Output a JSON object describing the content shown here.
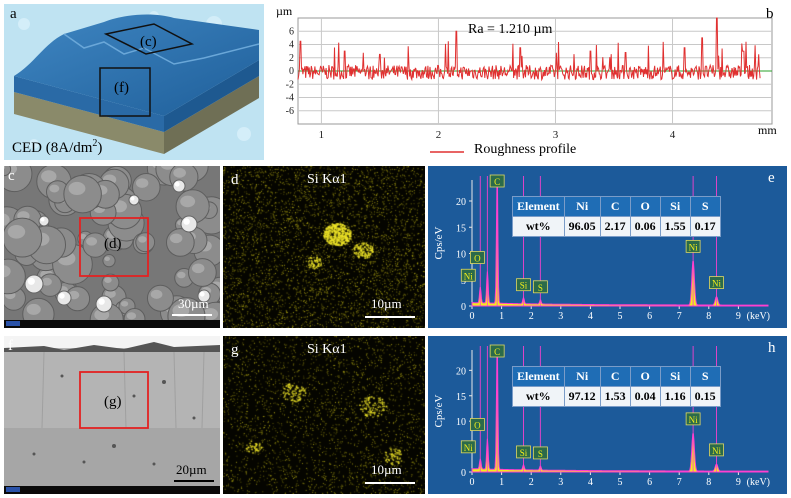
{
  "panel_a": {
    "label": "a",
    "region_c": "(c)",
    "region_f": "(f)",
    "caption_main": "CED (8A/dm",
    "caption_sup": "2",
    "caption_end": ")"
  },
  "panel_b": {
    "label": "b",
    "y_unit": "µm",
    "x_unit": "mm",
    "annotation": "Ra = 1.210 µm",
    "legend": "Roughness profile",
    "y_ticks": [
      "6",
      "4",
      "2",
      "0",
      "-2",
      "-4",
      "-6"
    ],
    "x_ticks": [
      "1",
      "2",
      "3",
      "4"
    ]
  },
  "panel_c": {
    "label": "c",
    "region": "(d)",
    "scale": "30µm"
  },
  "panel_d": {
    "label": "d",
    "title": "Si Kα1",
    "scale": "10µm"
  },
  "panel_e": {
    "label": "e",
    "y_axis": "Cps/eV",
    "x_unit": "(keV)",
    "y_ticks": [
      "20",
      "15",
      "10",
      "5",
      "0"
    ],
    "x_ticks": [
      "0",
      "1",
      "2",
      "3",
      "4",
      "5",
      "6",
      "7",
      "8",
      "9"
    ],
    "peaks": [
      "Ni",
      "O",
      "C",
      "Si",
      "S",
      "Ni",
      "Ni"
    ],
    "table_header": [
      "Element",
      "Ni",
      "C",
      "O",
      "Si",
      "S"
    ],
    "table_values": [
      "wt%",
      "96.05",
      "2.17",
      "0.06",
      "1.55",
      "0.17"
    ]
  },
  "panel_f": {
    "label": "f",
    "region": "(g)",
    "scale": "20µm"
  },
  "panel_g": {
    "label": "g",
    "title": "Si Kα1",
    "scale": "10µm"
  },
  "panel_h": {
    "label": "h",
    "y_axis": "Cps/eV",
    "x_unit": "(keV)",
    "y_ticks": [
      "20",
      "15",
      "10",
      "5",
      "0"
    ],
    "x_ticks": [
      "0",
      "1",
      "2",
      "3",
      "4",
      "5",
      "6",
      "7",
      "8",
      "9"
    ],
    "peaks": [
      "Ni",
      "O",
      "C",
      "Si",
      "S",
      "Ni",
      "Ni"
    ],
    "table_header": [
      "Element",
      "Ni",
      "C",
      "O",
      "Si",
      "S"
    ],
    "table_values": [
      "wt%",
      "97.12",
      "1.53",
      "0.04",
      "1.16",
      "0.15"
    ]
  },
  "chart_data": [
    {
      "type": "line",
      "panel": "b",
      "title": "Ra = 1.210 µm",
      "xlabel": "mm",
      "ylabel": "µm",
      "xlim": [
        0.8,
        4.85
      ],
      "ylim": [
        -8,
        8
      ],
      "grid": true,
      "legend": "bottom-center",
      "series": [
        {
          "name": "Roughness profile",
          "color": "#e03030"
        }
      ]
    },
    {
      "type": "line",
      "panel": "e",
      "xlabel": "(keV)",
      "ylabel": "Cps/eV",
      "xlim": [
        0,
        10
      ],
      "ylim": [
        0,
        24
      ],
      "peaks": [
        {
          "label": "C",
          "x": 0.28,
          "y": 3.0
        },
        {
          "label": "O",
          "x": 0.52,
          "y": 6.0
        },
        {
          "label": "Ni",
          "x": 0.85,
          "y": 24
        },
        {
          "label": "Si",
          "x": 1.74,
          "y": 1.2
        },
        {
          "label": "S",
          "x": 2.31,
          "y": 0.8
        },
        {
          "label": "Ni",
          "x": 7.47,
          "y": 8.5
        },
        {
          "label": "Ni",
          "x": 8.26,
          "y": 1.6
        }
      ],
      "table": {
        "Element": [
          "Ni",
          "C",
          "O",
          "Si",
          "S"
        ],
        "wt%": [
          96.05,
          2.17,
          0.06,
          1.55,
          0.17
        ]
      }
    },
    {
      "type": "line",
      "panel": "h",
      "xlabel": "(keV)",
      "ylabel": "Cps/eV",
      "xlim": [
        0,
        10
      ],
      "ylim": [
        0,
        24
      ],
      "peaks": [
        {
          "label": "C",
          "x": 0.28,
          "y": 2.0
        },
        {
          "label": "O",
          "x": 0.52,
          "y": 6.0
        },
        {
          "label": "Ni",
          "x": 0.85,
          "y": 24
        },
        {
          "label": "Si",
          "x": 1.74,
          "y": 1.0
        },
        {
          "label": "S",
          "x": 2.31,
          "y": 0.8
        },
        {
          "label": "Ni",
          "x": 7.47,
          "y": 7.5
        },
        {
          "label": "Ni",
          "x": 8.26,
          "y": 1.4
        }
      ],
      "table": {
        "Element": [
          "Ni",
          "C",
          "O",
          "Si",
          "S"
        ],
        "wt%": [
          97.12,
          1.53,
          0.04,
          1.16,
          0.15
        ]
      }
    }
  ]
}
